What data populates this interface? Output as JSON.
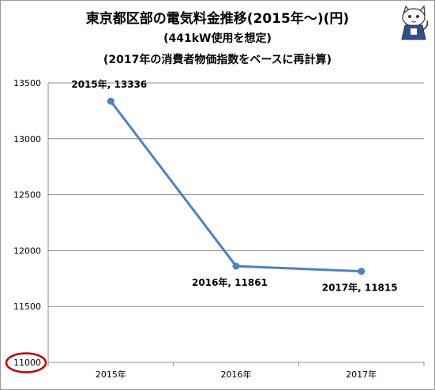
{
  "chart_data": {
    "type": "line",
    "title": "東京都区部の電気料金推移(2015年〜)(円)",
    "subtitle_lines": [
      "(441kW使用を想定)",
      "(2017年の消費者物価指数をベースに再計算)"
    ],
    "categories": [
      "2015年",
      "2016年",
      "2017年"
    ],
    "series": [
      {
        "values": [
          13336,
          11861,
          11815
        ]
      }
    ],
    "data_labels": [
      "2015年, 13336",
      "2016年, 11861",
      "2017年, 11815"
    ],
    "y_ticks": [
      11000,
      11500,
      12000,
      12500,
      13000,
      13500
    ],
    "ylim": [
      11000,
      13500
    ],
    "xlabel": "",
    "ylabel": "",
    "grid": "horizontal",
    "legend": "none",
    "line_color": "#4f81bd",
    "highlight": {
      "tick": 11000,
      "color": "#c00000"
    }
  }
}
